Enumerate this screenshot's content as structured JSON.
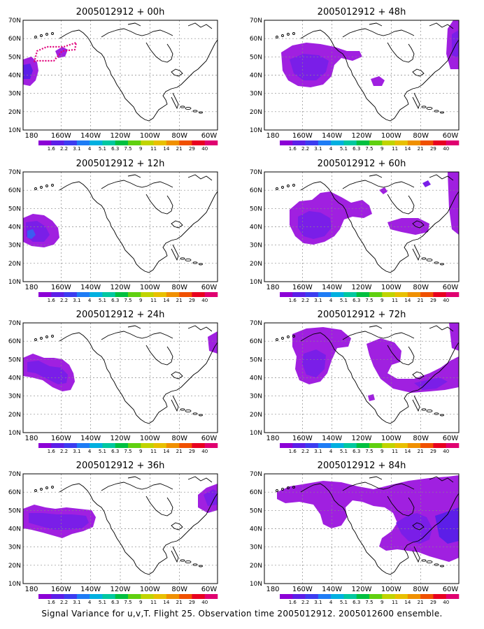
{
  "figure": {
    "caption": "Signal Variance for u,v,T. Flight 25. Observation time 2005012912. 2005012600 ensemble."
  },
  "axes": {
    "lat_labels": [
      "70N",
      "60N",
      "50N",
      "40N",
      "30N",
      "20N",
      "10N"
    ],
    "lon_labels": [
      "180",
      "160W",
      "140W",
      "120W",
      "100W",
      "80W",
      "60W"
    ]
  },
  "colorbar": {
    "labels": [
      "1.6",
      "2.2",
      "3.1",
      "4",
      "5.1",
      "6.3",
      "7.5",
      "9",
      "11",
      "14",
      "21",
      "29",
      "40"
    ],
    "colors": [
      "#8c00d6",
      "#5c1ee8",
      "#3c3cf0",
      "#1e7cf5",
      "#00b0e0",
      "#00c8a0",
      "#00c040",
      "#60d010",
      "#c0d400",
      "#e8c000",
      "#f09000",
      "#f05000",
      "#e80020",
      "#e00070"
    ]
  },
  "panels": [
    {
      "title": "2005012912 + 00h"
    },
    {
      "title": "2005012912 + 12h"
    },
    {
      "title": "2005012912 + 24h"
    },
    {
      "title": "2005012912 + 36h"
    },
    {
      "title": "2005012912 + 48h"
    },
    {
      "title": "2005012912 + 60h"
    },
    {
      "title": "2005012912 + 72h"
    },
    {
      "title": "2005012912 + 84h"
    }
  ],
  "colors": {
    "fill_light": "#a020e0",
    "fill_mid": "#7a1ee8",
    "fill_dark": "#5c1ee8",
    "fill_blue": "#3c5cf0",
    "flight_track": "#e0007a",
    "coast": "#000000",
    "grid": "#888888"
  }
}
